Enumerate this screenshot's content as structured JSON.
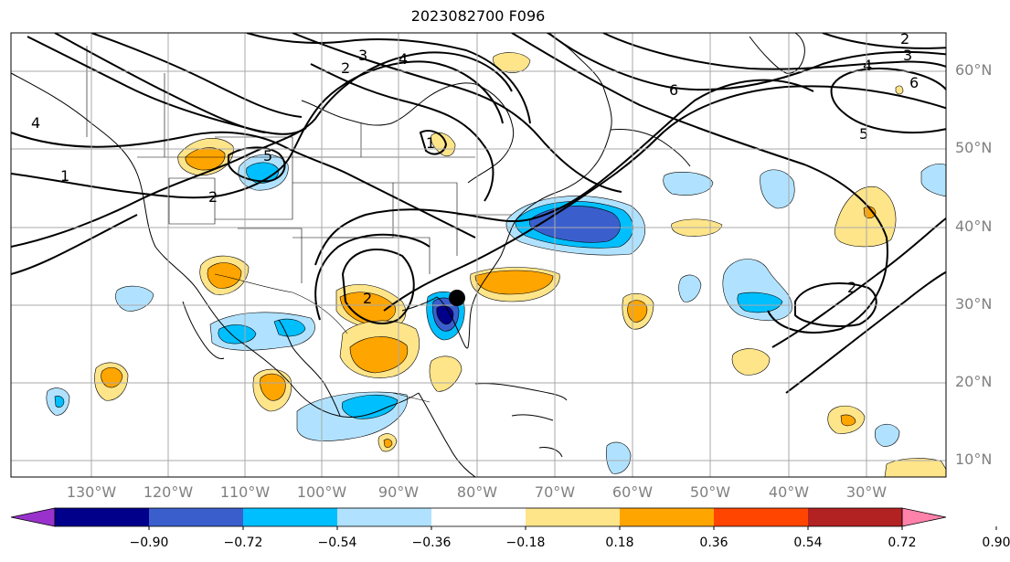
{
  "title": "2023082700 F096",
  "map": {
    "region": "North Atlantic / North America",
    "grid": true,
    "lat_labels": [
      "60°N",
      "50°N",
      "40°N",
      "30°N",
      "20°N",
      "10°N"
    ],
    "lon_labels": [
      "130°W",
      "120°W",
      "110°W",
      "100°W",
      "90°W",
      "80°W",
      "70°W",
      "60°W",
      "50°W",
      "40°W",
      "30°W"
    ],
    "contour_labels": [
      "1",
      "2",
      "3",
      "4",
      "5",
      "6"
    ],
    "marker": "storm-center-dot"
  },
  "colorbar": {
    "ticks": [
      "−0.90",
      "−0.72",
      "−0.54",
      "−0.36",
      "−0.18",
      "0.18",
      "0.36",
      "0.54",
      "0.72",
      "0.90"
    ],
    "colors": [
      "#9932cc",
      "#00008b",
      "#3a5fcd",
      "#00bfff",
      "#b0e2ff",
      "#ffffff",
      "#ffe58a",
      "#ffa500",
      "#ff4500",
      "#b22222",
      "#ff82ab"
    ]
  }
}
